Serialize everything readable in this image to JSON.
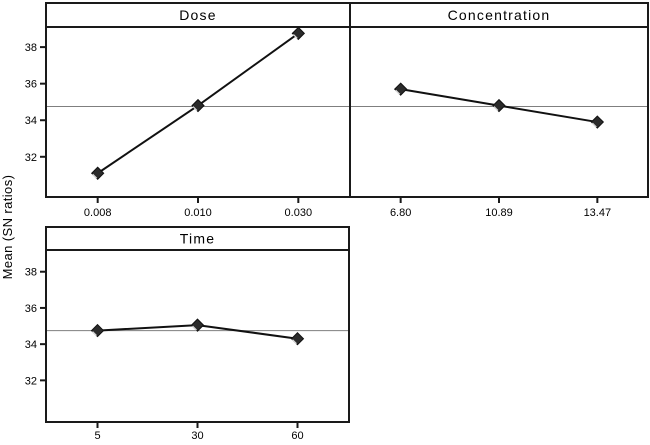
{
  "figure": {
    "ylabel": "Mean (SN ratios)",
    "reference_mean": 34.75,
    "colors": {
      "background": "#ffffff",
      "border": "#1a1a1a",
      "series_line": "#111111",
      "marker_fill": "#2b2b2b",
      "marker_bevel": "#d8d8d8",
      "reference_line": "#7f7f7f",
      "text": "#000000"
    }
  },
  "chart_data": [
    {
      "type": "line",
      "title": "Dose",
      "categories": [
        "0.008",
        "0.010",
        "0.030"
      ],
      "values": [
        31.1,
        34.8,
        38.75
      ],
      "yticks": [
        32,
        34,
        36,
        38
      ],
      "ylim": [
        29.8,
        39.1
      ],
      "reference_mean": 34.75,
      "ylabel": "Mean (SN ratios)",
      "legend": "none",
      "grid": "off",
      "show_y_axis": true
    },
    {
      "type": "line",
      "title": "Concentration",
      "categories": [
        "6.80",
        "10.89",
        "13.47"
      ],
      "values": [
        35.7,
        34.8,
        33.9
      ],
      "yticks": [
        32,
        34,
        36,
        38
      ],
      "ylim": [
        29.8,
        39.1
      ],
      "reference_mean": 34.75,
      "ylabel": "Mean (SN ratios)",
      "legend": "none",
      "grid": "off",
      "show_y_axis": false
    },
    {
      "type": "line",
      "title": "Time",
      "categories": [
        "5",
        "30",
        "60"
      ],
      "values": [
        34.75,
        35.05,
        34.3
      ],
      "yticks": [
        32,
        34,
        36,
        38
      ],
      "ylim": [
        29.7,
        39.2
      ],
      "reference_mean": 34.75,
      "ylabel": "Mean (SN ratios)",
      "legend": "none",
      "grid": "off",
      "show_y_axis": true
    }
  ]
}
